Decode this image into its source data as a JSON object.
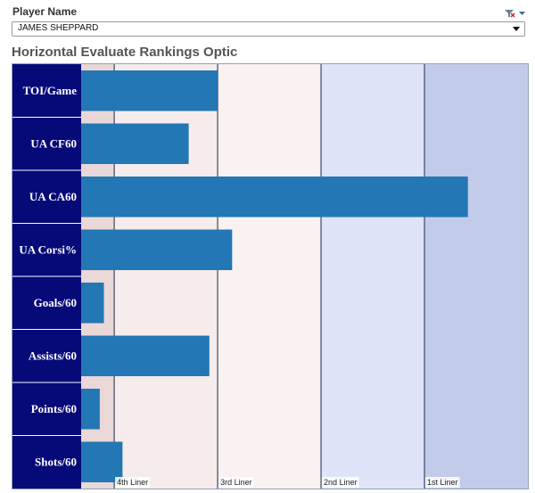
{
  "filter": {
    "label": "Player Name",
    "value": "JAMES SHEPPARD",
    "icons": [
      "clear-filter-icon",
      "filter-menu-icon"
    ]
  },
  "chart_data": {
    "type": "bar",
    "orientation": "horizontal",
    "title": "Horizontal Evaluate Rankings Optic",
    "categories": [
      "TOI/Game",
      "UA CF60",
      "UA CA60",
      "UA Corsi%",
      "Goals/60",
      "Assists/60",
      "Points/60",
      "Shots/60"
    ],
    "values": [
      0.5,
      0.36,
      1.71,
      0.57,
      -0.05,
      0.46,
      -0.07,
      0.04
    ],
    "bands": [
      {
        "label": "4th Liner",
        "from": 0,
        "to": 0.5,
        "color": "#f6ecec"
      },
      {
        "label": "3rd Liner",
        "from": 0.5,
        "to": 1,
        "color": "#faf1f1"
      },
      {
        "label": "2nd Liner",
        "from": 1,
        "to": 1.5,
        "color": "#e0e4f8"
      },
      {
        "label": "1st Liner",
        "from": 1.5,
        "to": 2,
        "color": "#c3cbea"
      }
    ],
    "xlim": [
      -0.16,
      2
    ],
    "grid": false,
    "colors": {
      "bar": "#2277b4",
      "category_band": "#060a78",
      "left_margin_band": "#ead7d7",
      "divider": "#3a4a66"
    }
  }
}
